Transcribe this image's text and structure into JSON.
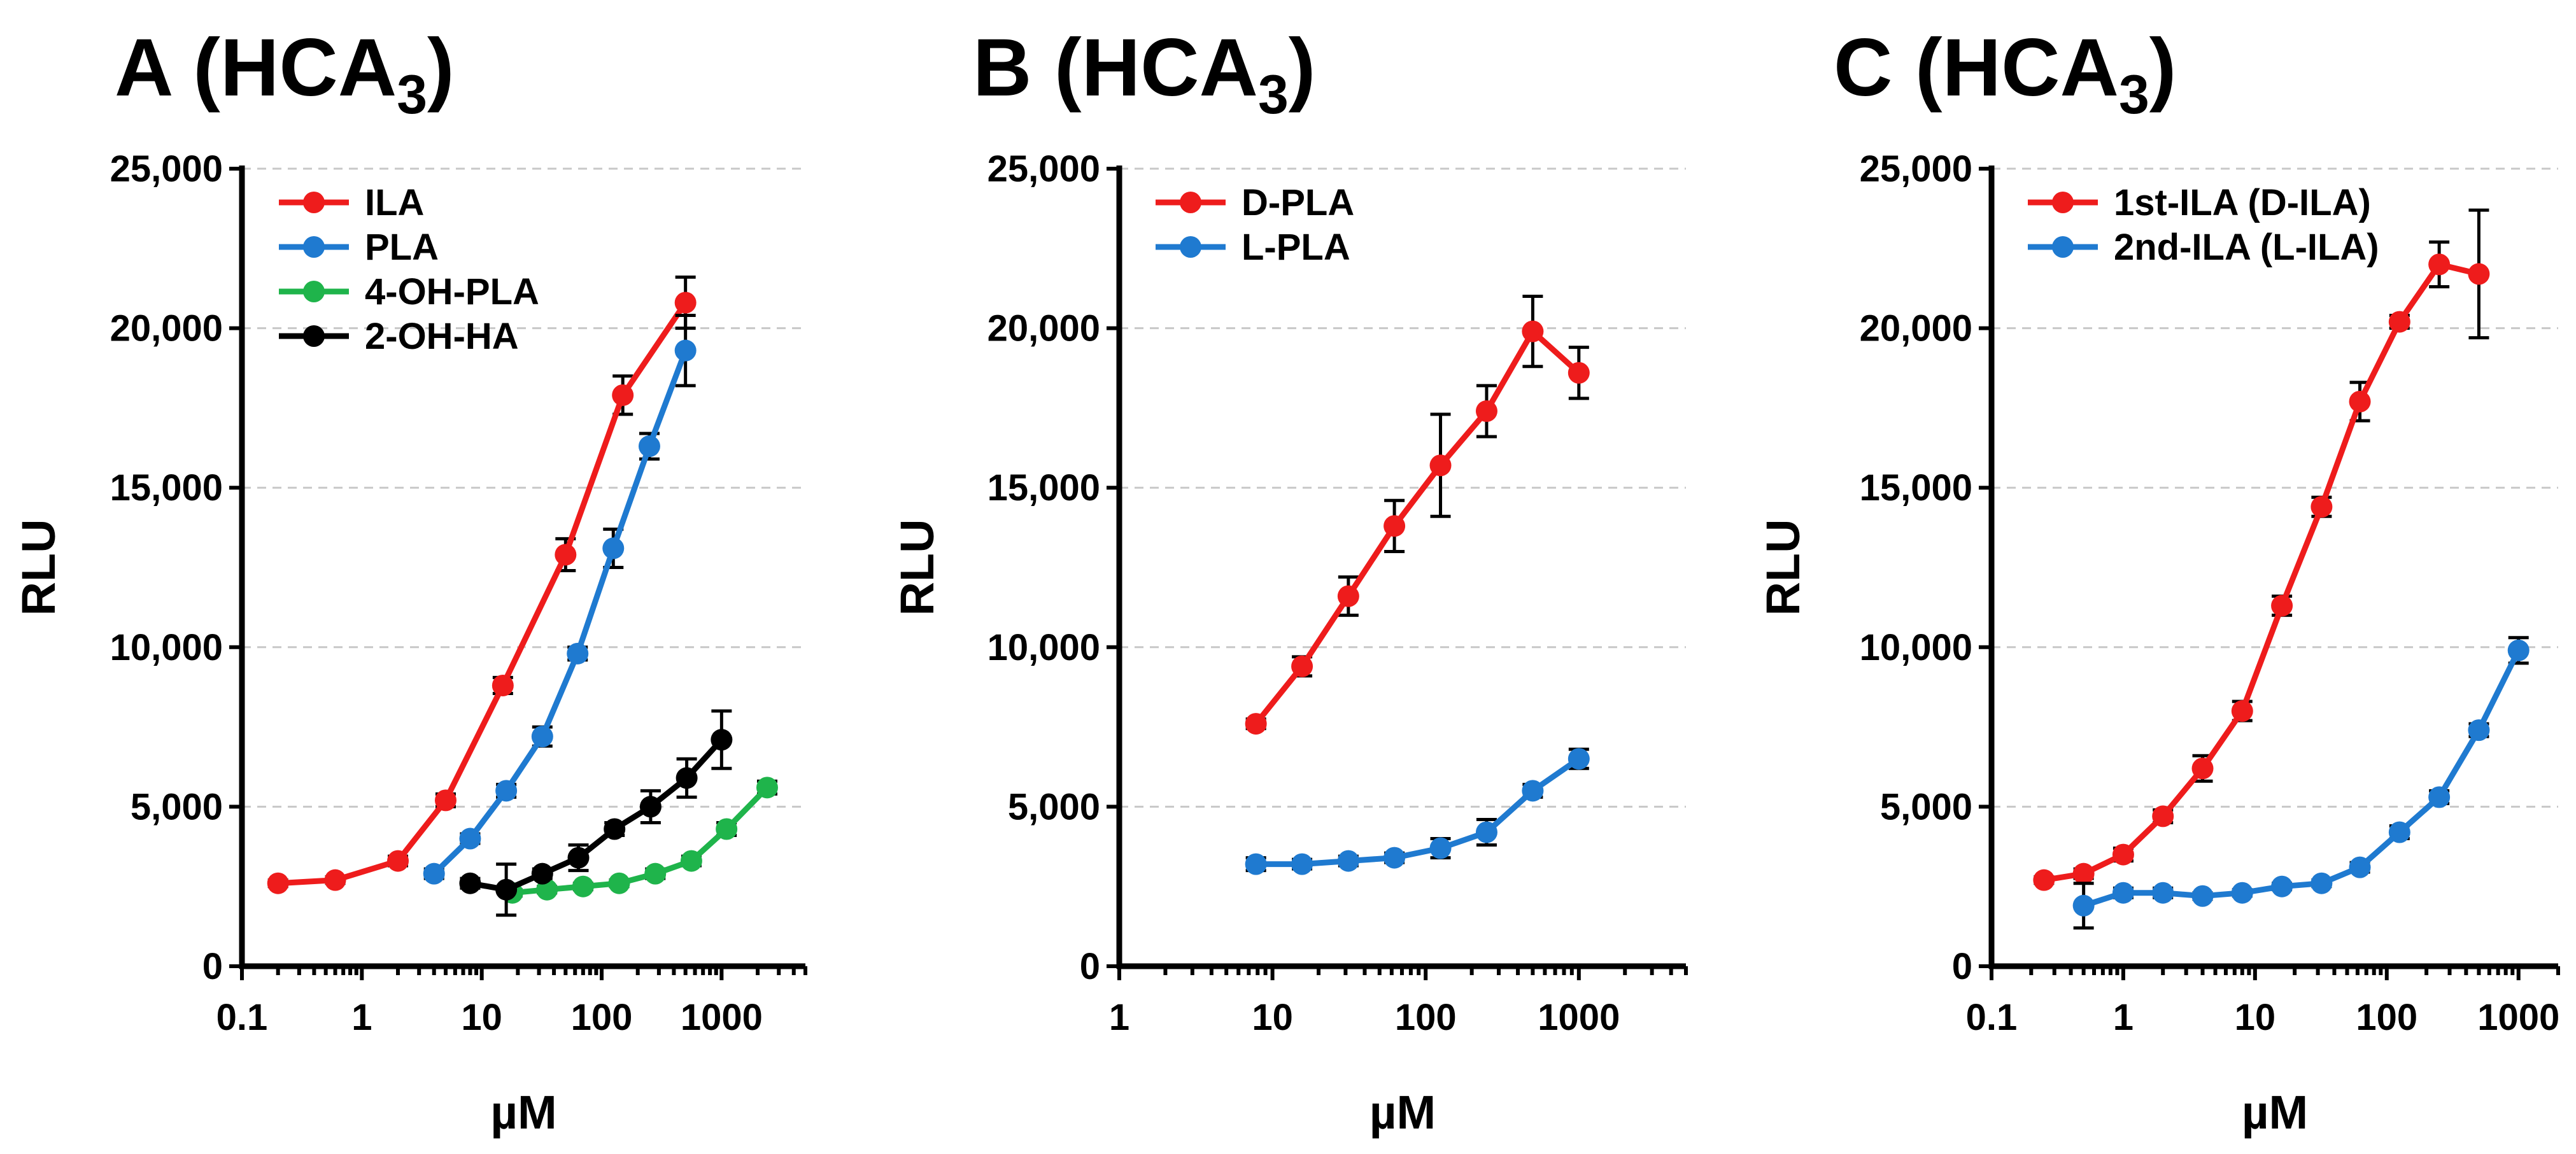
{
  "chart_data": [
    {
      "type": "line",
      "panel": "A",
      "title": {
        "main": "A (HCA",
        "sub": "3",
        "close": ")"
      },
      "xlabel": "µM",
      "ylabel": "RLU",
      "xscale": "log",
      "xlim": [
        0.1,
        5000
      ],
      "ylim": [
        0,
        25000
      ],
      "xticks": [
        {
          "value": 0.1,
          "label": "0.1"
        },
        {
          "value": 1,
          "label": "1"
        },
        {
          "value": 10,
          "label": "10"
        },
        {
          "value": 100,
          "label": "100"
        },
        {
          "value": 1000,
          "label": "1000"
        }
      ],
      "yticks": [
        {
          "value": 0,
          "label": "0"
        },
        {
          "value": 5000,
          "label": "5,000"
        },
        {
          "value": 10000,
          "label": "10,000"
        },
        {
          "value": 15000,
          "label": "15,000"
        },
        {
          "value": 20000,
          "label": "20,000"
        },
        {
          "value": 25000,
          "label": "25,000"
        }
      ],
      "grid": "horizontal dashed",
      "legend_position": "top-left",
      "series": [
        {
          "name": "ILA",
          "color": "#ee1c1c",
          "x": [
            0.2,
            0.6,
            2,
            5,
            15,
            50,
            150,
            500
          ],
          "y": [
            2600,
            2700,
            3300,
            5200,
            8800,
            12900,
            17900,
            20800
          ],
          "err": [
            100,
            100,
            150,
            200,
            250,
            500,
            600,
            800
          ]
        },
        {
          "name": "PLA",
          "color": "#1f7ad0",
          "x": [
            4,
            8,
            16,
            32,
            63,
            125,
            250,
            500
          ],
          "y": [
            2900,
            4000,
            5500,
            7200,
            9800,
            13100,
            16300,
            19300
          ],
          "err": [
            150,
            150,
            200,
            300,
            200,
            600,
            400,
            1100
          ]
        },
        {
          "name": "4-OH-PLA",
          "color": "#1fb44b",
          "x": [
            18,
            35,
            70,
            140,
            280,
            560,
            1100,
            2400
          ],
          "y": [
            2300,
            2400,
            2500,
            2600,
            2900,
            3300,
            4300,
            5600
          ],
          "err": [
            100,
            100,
            100,
            100,
            150,
            150,
            200,
            200
          ]
        },
        {
          "name": "2-OH-HA",
          "color": "#000000",
          "x": [
            8,
            16,
            32,
            64,
            128,
            256,
            512,
            1000
          ],
          "y": [
            2600,
            2400,
            2900,
            3400,
            4300,
            5000,
            5900,
            7100
          ],
          "err": [
            150,
            800,
            150,
            400,
            200,
            500,
            600,
            900
          ]
        }
      ]
    },
    {
      "type": "line",
      "panel": "B",
      "title": {
        "main": "B (HCA",
        "sub": "3",
        "close": ")"
      },
      "xlabel": "µM",
      "ylabel": "RLU",
      "xscale": "log",
      "xlim": [
        1,
        5000
      ],
      "ylim": [
        0,
        25000
      ],
      "xticks": [
        {
          "value": 1,
          "label": "1"
        },
        {
          "value": 10,
          "label": "10"
        },
        {
          "value": 100,
          "label": "100"
        },
        {
          "value": 1000,
          "label": "1000"
        }
      ],
      "yticks": [
        {
          "value": 0,
          "label": "0"
        },
        {
          "value": 5000,
          "label": "5,000"
        },
        {
          "value": 10000,
          "label": "10,000"
        },
        {
          "value": 15000,
          "label": "15,000"
        },
        {
          "value": 20000,
          "label": "20,000"
        },
        {
          "value": 25000,
          "label": "25,000"
        }
      ],
      "grid": "horizontal dashed",
      "legend_position": "top-left",
      "series": [
        {
          "name": "D-PLA",
          "color": "#ee1c1c",
          "x": [
            7.8,
            15.6,
            31.3,
            62.5,
            125,
            250,
            500,
            1000
          ],
          "y": [
            7600,
            9400,
            11600,
            13800,
            15700,
            17400,
            19900,
            18600
          ],
          "err": [
            150,
            300,
            600,
            800,
            1600,
            800,
            1100,
            800
          ]
        },
        {
          "name": "L-PLA",
          "color": "#1f7ad0",
          "x": [
            7.8,
            15.6,
            31.3,
            62.5,
            125,
            250,
            500,
            1000
          ],
          "y": [
            3200,
            3200,
            3300,
            3400,
            3700,
            4200,
            5500,
            6500
          ],
          "err": [
            200,
            150,
            150,
            150,
            300,
            400,
            200,
            300
          ]
        }
      ]
    },
    {
      "type": "line",
      "panel": "C",
      "title": {
        "main": "C (HCA",
        "sub": "3",
        "close": ")"
      },
      "xlabel": "µM",
      "ylabel": "RLU",
      "xscale": "log",
      "xlim": [
        0.1,
        2000
      ],
      "ylim": [
        0,
        25000
      ],
      "xticks": [
        {
          "value": 0.1,
          "label": "0.1"
        },
        {
          "value": 1,
          "label": "1"
        },
        {
          "value": 10,
          "label": "10"
        },
        {
          "value": 100,
          "label": "100"
        },
        {
          "value": 1000,
          "label": "1000"
        }
      ],
      "yticks": [
        {
          "value": 0,
          "label": "0"
        },
        {
          "value": 5000,
          "label": "5,000"
        },
        {
          "value": 10000,
          "label": "10,000"
        },
        {
          "value": 15000,
          "label": "15,000"
        },
        {
          "value": 20000,
          "label": "20,000"
        },
        {
          "value": 25000,
          "label": "25,000"
        }
      ],
      "grid": "horizontal dashed",
      "legend_position": "top-left",
      "series": [
        {
          "name": "1st-ILA (D-ILA)",
          "color": "#ee1c1c",
          "x": [
            0.25,
            0.5,
            1,
            2,
            4,
            8,
            16,
            32,
            62.5,
            125,
            250,
            500
          ],
          "y": [
            2700,
            2900,
            3500,
            4700,
            6200,
            8000,
            11300,
            14400,
            17700,
            20200,
            22000,
            21700
          ],
          "err": [
            100,
            150,
            200,
            200,
            400,
            300,
            300,
            300,
            600,
            200,
            700,
            2000
          ]
        },
        {
          "name": "2nd-ILA (L-ILA)",
          "color": "#1f7ad0",
          "x": [
            0.5,
            1,
            2,
            4,
            8,
            16,
            32,
            62.5,
            125,
            250,
            500,
            1000
          ],
          "y": [
            1900,
            2300,
            2300,
            2200,
            2300,
            2500,
            2600,
            3100,
            4200,
            5300,
            7400,
            9900
          ],
          "err": [
            700,
            150,
            150,
            100,
            100,
            100,
            100,
            150,
            200,
            200,
            200,
            400
          ]
        }
      ]
    }
  ]
}
